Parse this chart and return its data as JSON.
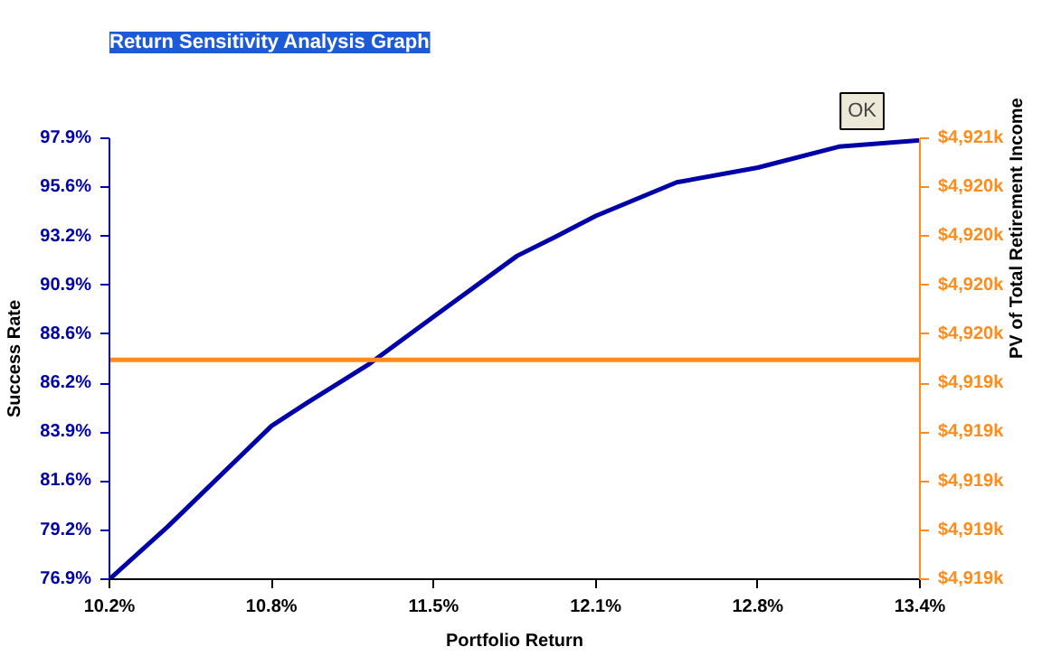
{
  "chart_data": {
    "type": "line",
    "title": "Return Sensitivity Analysis Graph",
    "xlabel": "Portfolio Return",
    "ylabel": "Success Rate",
    "y2label": "PV of Total Retirement Income",
    "annotations": [
      "OK"
    ],
    "series": [
      {
        "color": "#0000a8",
        "x": [
          10.2,
          10.43,
          10.84,
          10.98,
          11.22,
          11.48,
          11.81,
          11.96,
          12.12,
          12.44,
          12.76,
          13.08,
          13.4
        ],
        "values": [
          76.9,
          79.4,
          84.2,
          85.3,
          87.1,
          89.4,
          92.3,
          93.2,
          94.2,
          95.8,
          96.5,
          97.5,
          97.8
        ]
      },
      {
        "color": "#ff8c1a",
        "axis": "y2",
        "x": [
          10.2,
          13.4
        ],
        "values": [
          4919.58,
          4919.58
        ]
      }
    ],
    "xlim": [
      10.2,
      13.4
    ],
    "xticks": [
      {
        "value": 10.2,
        "label": "10.2%"
      },
      {
        "value": 10.84,
        "label": "10.8%"
      },
      {
        "value": 11.48,
        "label": "11.5%"
      },
      {
        "value": 12.12,
        "label": "12.1%"
      },
      {
        "value": 12.76,
        "label": "12.8%"
      },
      {
        "value": 13.4,
        "label": "13.4%"
      }
    ],
    "ylim": [
      76.9,
      97.9
    ],
    "yticks": [
      {
        "value": 76.9,
        "label": "76.9%"
      },
      {
        "value": 79.23,
        "label": "79.2%"
      },
      {
        "value": 81.57,
        "label": "81.6%"
      },
      {
        "value": 83.9,
        "label": "83.9%"
      },
      {
        "value": 86.23,
        "label": "86.2%"
      },
      {
        "value": 88.57,
        "label": "88.6%"
      },
      {
        "value": 90.9,
        "label": "90.9%"
      },
      {
        "value": 93.23,
        "label": "93.2%"
      },
      {
        "value": 95.57,
        "label": "95.6%"
      },
      {
        "value": 97.9,
        "label": "97.9%"
      }
    ],
    "y2lim": [
      4918.55,
      4920.62
    ],
    "y2ticks": [
      {
        "value": 4918.55,
        "label": "$4,919k"
      },
      {
        "value": 4918.78,
        "label": "$4,919k"
      },
      {
        "value": 4919.01,
        "label": "$4,919k"
      },
      {
        "value": 4919.24,
        "label": "$4,919k"
      },
      {
        "value": 4919.47,
        "label": "$4,919k"
      },
      {
        "value": 4919.7,
        "label": "$4,920k"
      },
      {
        "value": 4919.93,
        "label": "$4,920k"
      },
      {
        "value": 4920.16,
        "label": "$4,920k"
      },
      {
        "value": 4920.39,
        "label": "$4,920k"
      },
      {
        "value": 4920.62,
        "label": "$4,921k"
      }
    ]
  }
}
